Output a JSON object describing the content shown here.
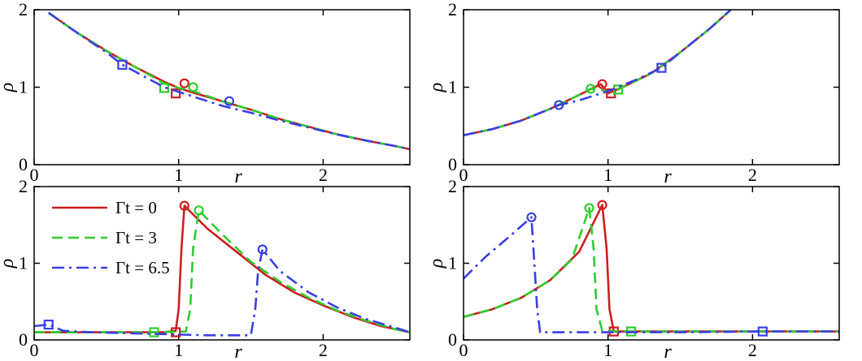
{
  "chart_data": [
    {
      "type": "line",
      "panel": "top-left",
      "xlabel": "r",
      "ylabel": "ρ",
      "xlim": [
        0,
        2.6
      ],
      "ylim": [
        0,
        2
      ],
      "xticks": [
        0,
        1,
        2
      ],
      "yticks": [
        0,
        1,
        2
      ],
      "xticklabels": [
        "0",
        "1",
        "2"
      ],
      "yticklabels": [
        "0",
        "1",
        "2"
      ],
      "grid": false,
      "series": [
        {
          "name": "Γt = 0",
          "x": [
            0.1,
            0.3,
            0.5,
            0.7,
            0.9,
            1.0,
            1.1,
            1.3,
            1.5,
            1.7,
            1.9,
            2.1,
            2.3,
            2.5,
            2.6
          ],
          "y": [
            1.96,
            1.7,
            1.47,
            1.26,
            1.07,
            0.99,
            0.93,
            0.82,
            0.71,
            0.59,
            0.49,
            0.39,
            0.31,
            0.24,
            0.2
          ],
          "markers": [
            {
              "x": 1.04,
              "y": 1.05,
              "shape": "circle"
            },
            {
              "x": 0.98,
              "y": 0.92,
              "shape": "square"
            }
          ]
        },
        {
          "name": "Γt = 3",
          "x": [
            0.1,
            0.3,
            0.5,
            0.7,
            0.9,
            1.0,
            1.1,
            1.3,
            1.5,
            1.7,
            1.9,
            2.1,
            2.3,
            2.5,
            2.6
          ],
          "y": [
            1.96,
            1.7,
            1.47,
            1.26,
            1.05,
            0.99,
            0.95,
            0.82,
            0.71,
            0.59,
            0.49,
            0.39,
            0.31,
            0.24,
            0.2
          ],
          "markers": [
            {
              "x": 1.1,
              "y": 1.0,
              "shape": "circle"
            },
            {
              "x": 0.9,
              "y": 0.99,
              "shape": "square"
            }
          ]
        },
        {
          "name": "Γt = 6.5",
          "x": [
            0.1,
            0.3,
            0.5,
            0.61,
            0.7,
            0.9,
            1.1,
            1.3,
            1.5,
            1.7,
            1.9,
            2.1,
            2.3,
            2.5,
            2.6
          ],
          "y": [
            1.96,
            1.7,
            1.45,
            1.29,
            1.2,
            1.0,
            0.88,
            0.76,
            0.67,
            0.57,
            0.48,
            0.39,
            0.31,
            0.24,
            0.2
          ],
          "markers": [
            {
              "x": 1.35,
              "y": 0.82,
              "shape": "circle"
            },
            {
              "x": 0.61,
              "y": 1.29,
              "shape": "square"
            }
          ]
        }
      ]
    },
    {
      "type": "line",
      "panel": "top-right",
      "xlabel": "r",
      "ylabel": "ρ",
      "xlim": [
        0,
        2.6
      ],
      "ylim": [
        0,
        2
      ],
      "xticks": [
        0,
        1,
        2
      ],
      "yticks": [
        0,
        1,
        2
      ],
      "xticklabels": [
        "0",
        "1",
        "2"
      ],
      "yticklabels": [
        "0",
        "1",
        "2"
      ],
      "grid": false,
      "series": [
        {
          "name": "Γt = 0",
          "x": [
            0.0,
            0.2,
            0.4,
            0.6,
            0.8,
            0.95,
            1.0,
            1.1,
            1.3,
            1.5,
            1.7,
            1.85
          ],
          "y": [
            0.38,
            0.46,
            0.57,
            0.72,
            0.9,
            1.04,
            0.92,
            1.0,
            1.18,
            1.45,
            1.75,
            2.0
          ],
          "markers": [
            {
              "x": 0.96,
              "y": 1.04,
              "shape": "circle"
            },
            {
              "x": 1.02,
              "y": 0.92,
              "shape": "square"
            }
          ]
        },
        {
          "name": "Γt = 3",
          "x": [
            0.0,
            0.2,
            0.4,
            0.6,
            0.8,
            0.88,
            1.0,
            1.07,
            1.3,
            1.5,
            1.7,
            1.85
          ],
          "y": [
            0.38,
            0.46,
            0.57,
            0.72,
            0.9,
            0.98,
            0.95,
            0.97,
            1.18,
            1.45,
            1.75,
            2.0
          ],
          "markers": [
            {
              "x": 0.88,
              "y": 0.98,
              "shape": "circle"
            },
            {
              "x": 1.07,
              "y": 0.97,
              "shape": "square"
            }
          ]
        },
        {
          "name": "Γt = 6.5",
          "x": [
            0.0,
            0.2,
            0.4,
            0.6,
            0.66,
            0.8,
            1.0,
            1.2,
            1.37,
            1.5,
            1.7,
            1.85
          ],
          "y": [
            0.38,
            0.46,
            0.57,
            0.72,
            0.77,
            0.83,
            0.95,
            1.1,
            1.25,
            1.45,
            1.75,
            2.0
          ],
          "markers": [
            {
              "x": 0.66,
              "y": 0.77,
              "shape": "circle"
            },
            {
              "x": 1.37,
              "y": 1.25,
              "shape": "square"
            }
          ]
        }
      ]
    },
    {
      "type": "line",
      "panel": "bottom-left",
      "xlabel": "r",
      "ylabel": "ρ",
      "xlim": [
        0,
        2.6
      ],
      "ylim": [
        0,
        2
      ],
      "xticks": [
        0,
        1,
        2
      ],
      "yticks": [
        0,
        1,
        2
      ],
      "xticklabels": [
        "0",
        "1",
        "2"
      ],
      "yticklabels": [
        "0",
        "1",
        "2"
      ],
      "grid": false,
      "legend": {
        "position": "top-left",
        "entries": [
          "Γt = 0",
          "Γt = 3",
          "Γt = 6.5"
        ]
      },
      "series": [
        {
          "name": "Γt = 0",
          "x": [
            0.0,
            0.5,
            0.9,
            0.98,
            1.0,
            1.02,
            1.04,
            1.2,
            1.4,
            1.6,
            1.8,
            2.0,
            2.2,
            2.4,
            2.6
          ],
          "y": [
            0.1,
            0.1,
            0.1,
            0.12,
            0.4,
            1.2,
            1.75,
            1.45,
            1.15,
            0.85,
            0.62,
            0.45,
            0.3,
            0.18,
            0.1
          ],
          "markers": [
            {
              "x": 1.04,
              "y": 1.75,
              "shape": "circle"
            },
            {
              "x": 0.98,
              "y": 0.1,
              "shape": "square"
            }
          ]
        },
        {
          "name": "Γt = 3",
          "x": [
            0.0,
            0.5,
            0.85,
            1.05,
            1.08,
            1.1,
            1.14,
            1.3,
            1.5,
            1.7,
            1.9,
            2.1,
            2.3,
            2.5,
            2.6
          ],
          "y": [
            0.1,
            0.1,
            0.1,
            0.11,
            0.4,
            1.2,
            1.69,
            1.38,
            1.02,
            0.76,
            0.55,
            0.38,
            0.25,
            0.14,
            0.1
          ],
          "markers": [
            {
              "x": 1.14,
              "y": 1.69,
              "shape": "circle"
            },
            {
              "x": 0.83,
              "y": 0.1,
              "shape": "square"
            }
          ]
        },
        {
          "name": "Γt = 6.5",
          "x": [
            0.0,
            0.1,
            0.2,
            0.4,
            0.8,
            1.2,
            1.5,
            1.53,
            1.55,
            1.58,
            1.7,
            1.9,
            2.1,
            2.3,
            2.5,
            2.6
          ],
          "y": [
            0.18,
            0.2,
            0.12,
            0.1,
            0.08,
            0.06,
            0.06,
            0.4,
            0.9,
            1.18,
            0.9,
            0.62,
            0.42,
            0.27,
            0.16,
            0.1
          ],
          "markers": [
            {
              "x": 1.58,
              "y": 1.18,
              "shape": "circle"
            },
            {
              "x": 0.1,
              "y": 0.2,
              "shape": "square"
            }
          ]
        }
      ]
    },
    {
      "type": "line",
      "panel": "bottom-right",
      "xlabel": "r",
      "ylabel": "ρ",
      "xlim": [
        0,
        2.6
      ],
      "ylim": [
        0,
        2
      ],
      "xticks": [
        0,
        1,
        2
      ],
      "yticks": [
        0,
        1,
        2
      ],
      "xticklabels": [
        "0",
        "1",
        "2"
      ],
      "yticklabels": [
        "0",
        "1",
        "2"
      ],
      "grid": false,
      "series": [
        {
          "name": "Γt = 0",
          "x": [
            0.0,
            0.2,
            0.4,
            0.6,
            0.8,
            0.96,
            0.99,
            1.01,
            1.04,
            1.2,
            1.6,
            2.0,
            2.6
          ],
          "y": [
            0.3,
            0.4,
            0.55,
            0.78,
            1.15,
            1.76,
            1.2,
            0.4,
            0.11,
            0.11,
            0.11,
            0.11,
            0.11
          ],
          "markers": [
            {
              "x": 0.96,
              "y": 1.76,
              "shape": "circle"
            },
            {
              "x": 1.04,
              "y": 0.11,
              "shape": "square"
            }
          ]
        },
        {
          "name": "Γt = 3",
          "x": [
            0.0,
            0.2,
            0.4,
            0.6,
            0.75,
            0.87,
            0.9,
            0.92,
            0.96,
            1.15,
            1.6,
            2.0,
            2.6
          ],
          "y": [
            0.3,
            0.4,
            0.55,
            0.78,
            1.05,
            1.72,
            1.2,
            0.4,
            0.12,
            0.11,
            0.11,
            0.11,
            0.11
          ],
          "markers": [
            {
              "x": 0.87,
              "y": 1.72,
              "shape": "circle"
            },
            {
              "x": 1.16,
              "y": 0.11,
              "shape": "square"
            }
          ]
        },
        {
          "name": "Γt = 6.5",
          "x": [
            0.0,
            0.15,
            0.3,
            0.47,
            0.49,
            0.51,
            0.53,
            0.7,
            1.0,
            1.5,
            2.07,
            2.6
          ],
          "y": [
            0.8,
            1.08,
            1.32,
            1.6,
            1.0,
            0.4,
            0.1,
            0.1,
            0.1,
            0.1,
            0.11,
            0.11
          ],
          "markers": [
            {
              "x": 0.47,
              "y": 1.6,
              "shape": "circle"
            },
            {
              "x": 2.07,
              "y": 0.11,
              "shape": "square"
            }
          ]
        }
      ]
    }
  ],
  "colors": {
    "series_0": "#cc1f1f",
    "series_1": "#2ecc2e",
    "series_2": "#3a3fe0"
  },
  "line_styles": [
    "solid",
    "dashed",
    "dash-dot"
  ]
}
